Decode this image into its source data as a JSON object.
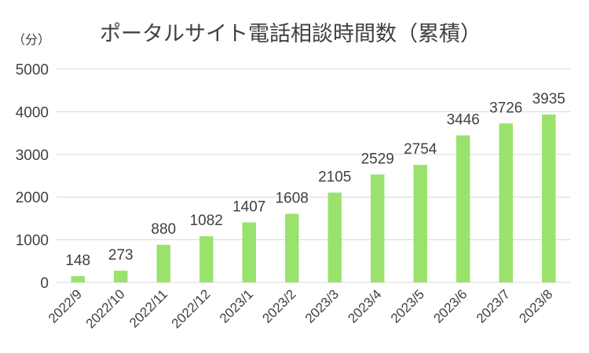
{
  "chart_data": {
    "type": "bar",
    "title": "ポータルサイト電話相談時間数（累積）",
    "ylabel": "（分）",
    "xlabel": "",
    "categories": [
      "2022/9",
      "2022/10",
      "2022/11",
      "2022/12",
      "2023/1",
      "2023/2",
      "2023/3",
      "2023/4",
      "2023/5",
      "2023/6",
      "2023/7",
      "2023/8"
    ],
    "values": [
      148,
      273,
      880,
      1082,
      1407,
      1608,
      2105,
      2529,
      2754,
      3446,
      3726,
      3935
    ],
    "ylim": [
      0,
      5000
    ],
    "yticks": [
      0,
      1000,
      2000,
      3000,
      4000,
      5000
    ],
    "grid": true,
    "legend": "none",
    "bar_color": "#99e36d"
  }
}
